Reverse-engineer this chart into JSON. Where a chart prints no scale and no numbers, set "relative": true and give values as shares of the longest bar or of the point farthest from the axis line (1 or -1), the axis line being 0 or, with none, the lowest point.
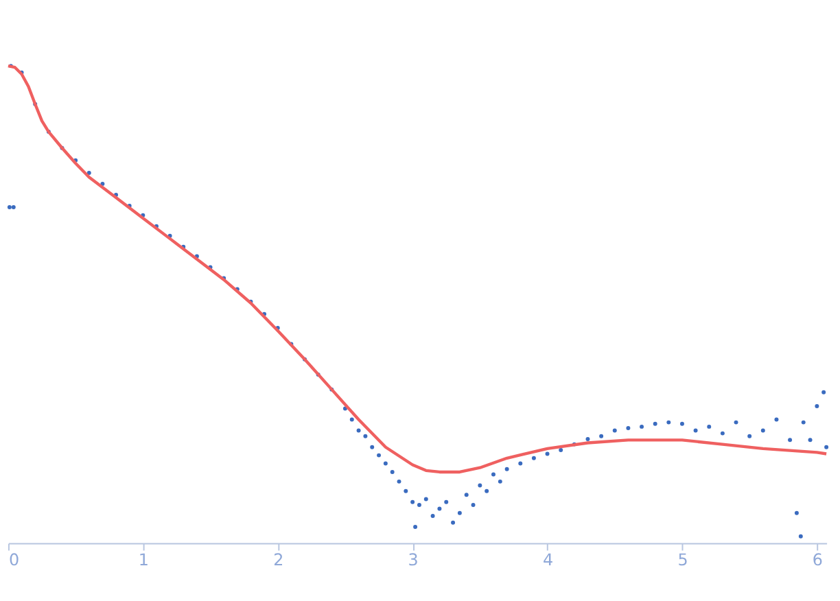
{
  "chart_data": {
    "type": "scatter",
    "relative": true,
    "xlim": [
      0,
      6.07
    ],
    "xticks": [
      0,
      1,
      2,
      3,
      4,
      5,
      6
    ],
    "marker": "circle",
    "series": [
      {
        "color": "#3a6bbf",
        "x": [
          0.01,
          0.04,
          0.02,
          0.1,
          0.2,
          0.3,
          0.4,
          0.5,
          0.6,
          0.7,
          0.8,
          0.9,
          1.0,
          1.1,
          1.2,
          1.3,
          1.4,
          1.5,
          1.6,
          1.7,
          1.8,
          1.9,
          2.0,
          2.1,
          2.2,
          2.3,
          2.4,
          2.5,
          2.55,
          2.6,
          2.65,
          2.7,
          2.75,
          2.8,
          2.85,
          2.9,
          2.95,
          3.0,
          3.02,
          3.05,
          3.1,
          3.15,
          3.2,
          3.25,
          3.3,
          3.35,
          3.4,
          3.45,
          3.5,
          3.55,
          3.6,
          3.65,
          3.7,
          3.8,
          3.9,
          4.0,
          4.1,
          4.2,
          4.3,
          4.4,
          4.5,
          4.6,
          4.7,
          4.8,
          4.9,
          5.0,
          5.1,
          5.2,
          5.3,
          5.4,
          5.5,
          5.6,
          5.7,
          5.8,
          5.85,
          5.88,
          5.9,
          5.95,
          6.0,
          6.05,
          6.07
        ],
        "values": [
          0.704,
          0.704,
          1.0,
          0.986,
          0.92,
          0.862,
          0.828,
          0.802,
          0.776,
          0.753,
          0.73,
          0.707,
          0.687,
          0.664,
          0.644,
          0.621,
          0.601,
          0.578,
          0.555,
          0.532,
          0.506,
          0.48,
          0.451,
          0.417,
          0.385,
          0.353,
          0.322,
          0.282,
          0.259,
          0.236,
          0.224,
          0.201,
          0.184,
          0.167,
          0.149,
          0.129,
          0.109,
          0.086,
          0.034,
          0.08,
          0.092,
          0.057,
          0.072,
          0.086,
          0.043,
          0.063,
          0.101,
          0.08,
          0.121,
          0.109,
          0.144,
          0.129,
          0.155,
          0.167,
          0.178,
          0.187,
          0.195,
          0.207,
          0.218,
          0.224,
          0.236,
          0.241,
          0.244,
          0.25,
          0.253,
          0.25,
          0.236,
          0.244,
          0.23,
          0.253,
          0.224,
          0.236,
          0.259,
          0.216,
          0.063,
          0.014,
          0.253,
          0.216,
          0.287,
          0.316,
          0.201
        ]
      },
      {
        "type": "line",
        "color": "#ef6060",
        "marker": "none",
        "x": [
          0,
          0.05,
          0.1,
          0.15,
          0.2,
          0.25,
          0.3,
          0.4,
          0.5,
          0.6,
          0.8,
          1.0,
          1.2,
          1.4,
          1.6,
          1.8,
          2.0,
          2.2,
          2.4,
          2.6,
          2.8,
          3.0,
          3.1,
          3.2,
          3.35,
          3.5,
          3.7,
          4.0,
          4.3,
          4.6,
          5.0,
          5.3,
          5.6,
          6.0,
          6.07
        ],
        "values": [
          1.0,
          0.997,
          0.983,
          0.957,
          0.92,
          0.885,
          0.862,
          0.828,
          0.796,
          0.767,
          0.724,
          0.681,
          0.638,
          0.595,
          0.552,
          0.503,
          0.445,
          0.385,
          0.322,
          0.259,
          0.201,
          0.164,
          0.152,
          0.149,
          0.149,
          0.158,
          0.178,
          0.198,
          0.21,
          0.216,
          0.216,
          0.207,
          0.198,
          0.19,
          0.187
        ]
      }
    ]
  }
}
